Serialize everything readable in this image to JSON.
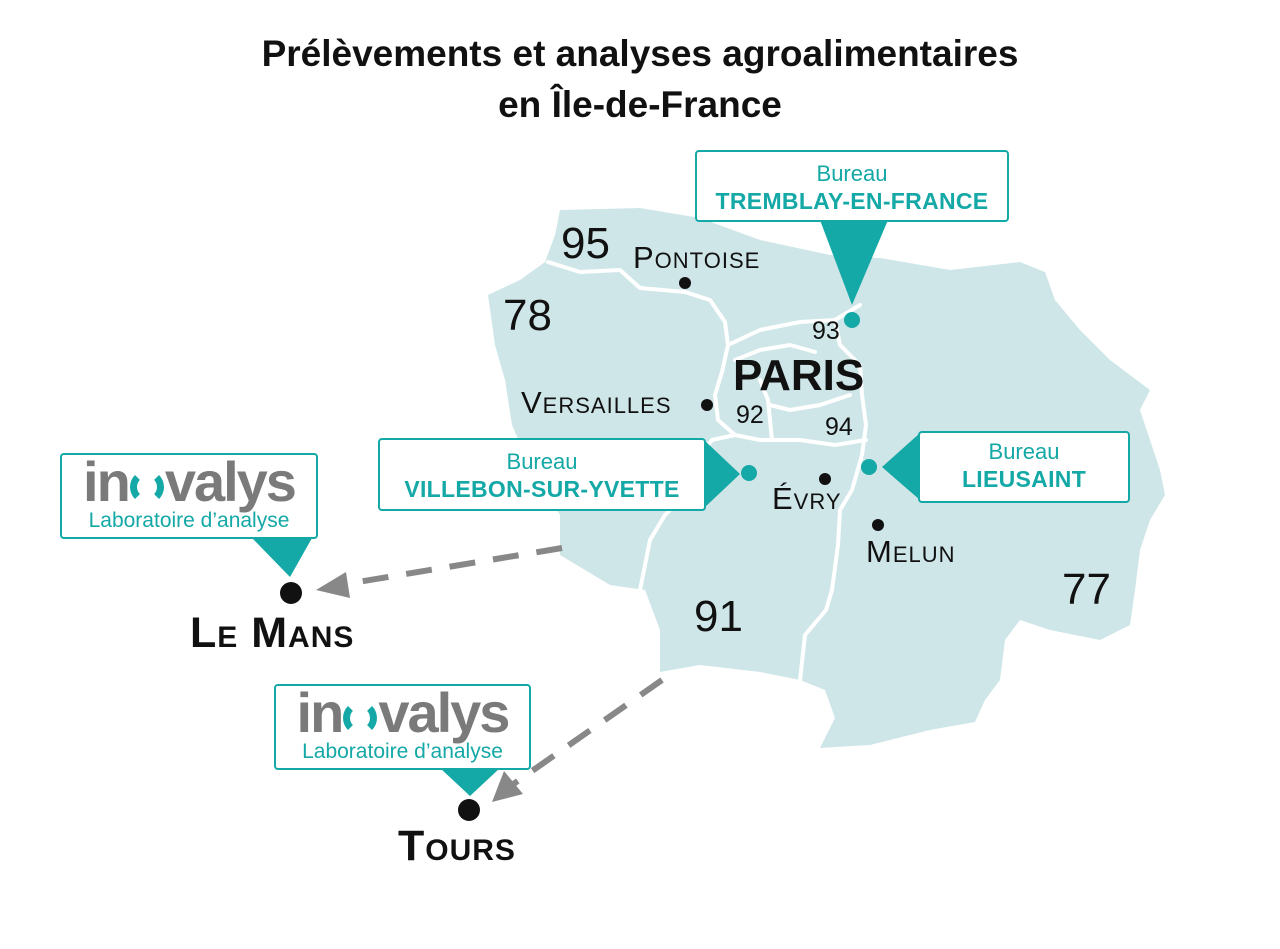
{
  "title": {
    "line1": "Prélèvements et analyses agroalimentaires",
    "line2": "en Île-de-France"
  },
  "colors": {
    "region_fill": "#cfe6e8",
    "border_lines": "#ffffff",
    "accent": "#14a8a6",
    "arrow": "#888888",
    "text": "#111111"
  },
  "departments": {
    "d95": "95",
    "d78": "78",
    "d93": "93",
    "d92": "92",
    "d94": "94",
    "d91": "91",
    "d77": "77"
  },
  "cities": {
    "pontoise": "Pontoise",
    "versailles": "Versailles",
    "paris": "PARIS",
    "evry": "Évry",
    "melun": "Melun"
  },
  "bureaus": {
    "tremblay": {
      "label": "Bureau",
      "name": "TREMBLAY-EN-FRANCE"
    },
    "villebon": {
      "label": "Bureau",
      "name": "VILLEBON-SUR-YVETTE"
    },
    "lieusaint": {
      "label": "Bureau",
      "name": "LIEUSAINT"
    }
  },
  "laboratories": {
    "le_mans": {
      "brand_pre": "in",
      "brand_post": "valys",
      "subtitle": "Laboratoire d’analyse",
      "city": "Le Mans"
    },
    "tours": {
      "brand_pre": "in",
      "brand_post": "valys",
      "subtitle": "Laboratoire d’analyse",
      "city": "Tours"
    }
  }
}
